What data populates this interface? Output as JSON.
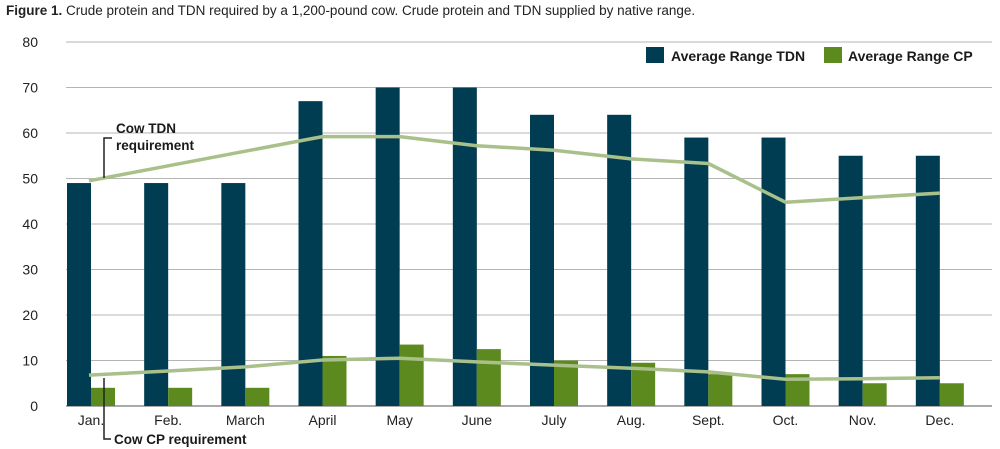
{
  "caption": {
    "label": "Figure 1.",
    "text": "Crude protein and TDN required by a 1,200-pound cow. Crude protein and TDN supplied by native range."
  },
  "colors": {
    "tdn_bar": "#003d52",
    "cp_bar": "#5d8a1f",
    "requirement_line": "#a9c08a",
    "grid": "#b5b5b5"
  },
  "chart_data": {
    "type": "bar",
    "title": "Crude protein and TDN required by a 1,200-pound cow. Crude protein and TDN supplied by native range.",
    "categories": [
      "Jan.",
      "Feb.",
      "March",
      "April",
      "May",
      "June",
      "July",
      "Aug.",
      "Sept.",
      "Oct.",
      "Nov.",
      "Dec."
    ],
    "ylim": [
      0,
      80
    ],
    "yticks": [
      0,
      10,
      20,
      30,
      40,
      50,
      60,
      70,
      80
    ],
    "grid": true,
    "legend_position": "top-right",
    "series": [
      {
        "name": "Average Range TDN",
        "type": "bar",
        "values": [
          49,
          49,
          49,
          67,
          70,
          70,
          64,
          64,
          59,
          59,
          55,
          55
        ]
      },
      {
        "name": "Average Range CP",
        "type": "bar",
        "values": [
          4,
          4,
          4,
          11,
          13.5,
          12.5,
          10,
          9.5,
          7,
          7,
          5,
          5
        ]
      },
      {
        "name": "Cow TDN requirement",
        "type": "line",
        "values": [
          49.5,
          52.8,
          56,
          59.2,
          59.2,
          57.2,
          56.2,
          54.3,
          53.3,
          44.8,
          45.8,
          46.8
        ]
      },
      {
        "name": "Cow CP requirement",
        "type": "line",
        "values": [
          6.8,
          7.7,
          8.6,
          10.1,
          10.5,
          9.7,
          9,
          8.3,
          7.5,
          5.9,
          6,
          6.2
        ]
      }
    ],
    "annotations": [
      {
        "lines": [
          "Cow TDN",
          "requirement"
        ],
        "target": "Cow TDN requirement"
      },
      {
        "lines": [
          "Cow CP requirement"
        ],
        "target": "Cow CP requirement"
      }
    ]
  }
}
